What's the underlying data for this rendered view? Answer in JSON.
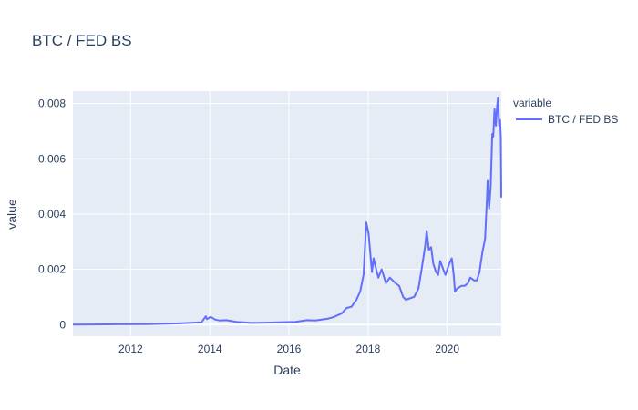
{
  "chart_data": {
    "type": "line",
    "title": "BTC / FED BS",
    "xlabel": "Date",
    "ylabel": "value",
    "x_type": "date",
    "xlim": [
      "2010-07-17",
      "2021-05-14"
    ],
    "ylim": [
      -0.00042,
      0.00845
    ],
    "x_ticks": [
      "2012-01-01",
      "2014-01-01",
      "2016-01-01",
      "2018-01-01",
      "2020-01-01"
    ],
    "x_tick_labels": [
      "2012",
      "2014",
      "2016",
      "2018",
      "2020"
    ],
    "y_ticks": [
      0,
      0.002,
      0.004,
      0.006,
      0.008
    ],
    "y_tick_labels": [
      "0",
      "0.002",
      "0.004",
      "0.006",
      "0.008"
    ],
    "grid": true,
    "legend": {
      "title": "variable",
      "placement": "top-right"
    },
    "series": [
      {
        "name": "BTC / FED BS",
        "color": "#636efa",
        "x": [
          "2010-07-17",
          "2011-06-01",
          "2012-06-01",
          "2013-03-01",
          "2013-10-15",
          "2013-11-25",
          "2013-12-05",
          "2014-01-10",
          "2014-02-20",
          "2014-04-01",
          "2014-06-01",
          "2014-09-01",
          "2015-01-15",
          "2015-06-01",
          "2015-10-01",
          "2016-03-01",
          "2016-06-15",
          "2016-09-01",
          "2017-01-01",
          "2017-02-20",
          "2017-05-01",
          "2017-06-15",
          "2017-08-01",
          "2017-09-15",
          "2017-10-20",
          "2017-11-20",
          "2017-12-15",
          "2018-01-05",
          "2018-02-05",
          "2018-02-20",
          "2018-03-10",
          "2018-04-05",
          "2018-05-05",
          "2018-06-15",
          "2018-07-20",
          "2018-08-15",
          "2018-09-10",
          "2018-10-15",
          "2018-11-20",
          "2018-12-15",
          "2019-01-20",
          "2019-03-01",
          "2019-04-10",
          "2019-05-10",
          "2019-06-10",
          "2019-06-26",
          "2019-07-15",
          "2019-08-05",
          "2019-08-25",
          "2019-09-20",
          "2019-10-10",
          "2019-10-28",
          "2019-11-25",
          "2019-12-15",
          "2020-01-20",
          "2020-02-12",
          "2020-03-01",
          "2020-03-13",
          "2020-04-01",
          "2020-05-10",
          "2020-06-10",
          "2020-07-10",
          "2020-08-01",
          "2020-09-05",
          "2020-10-01",
          "2020-10-25",
          "2020-11-20",
          "2020-12-15",
          "2021-01-01",
          "2021-01-08",
          "2021-01-22",
          "2021-02-05",
          "2021-02-20",
          "2021-03-01",
          "2021-03-13",
          "2021-03-25",
          "2021-04-05",
          "2021-04-14",
          "2021-04-25",
          "2021-05-03",
          "2021-05-10",
          "2021-05-14"
        ],
        "y": [
          0,
          1e-05,
          2e-05,
          4e-05,
          8e-05,
          0.0003,
          0.0002,
          0.00028,
          0.00018,
          0.00015,
          0.00016,
          0.0001,
          6e-05,
          7e-05,
          8e-05,
          0.0001,
          0.00016,
          0.00015,
          0.00022,
          0.00028,
          0.0004,
          0.0006,
          0.00065,
          0.0009,
          0.0012,
          0.0018,
          0.0037,
          0.0033,
          0.0019,
          0.0024,
          0.0021,
          0.0017,
          0.002,
          0.0015,
          0.0017,
          0.0016,
          0.0015,
          0.0014,
          0.001,
          0.0009,
          0.00095,
          0.001,
          0.0013,
          0.002,
          0.0028,
          0.0034,
          0.0027,
          0.0028,
          0.0022,
          0.0019,
          0.0018,
          0.0023,
          0.002,
          0.0018,
          0.0022,
          0.0024,
          0.0018,
          0.0012,
          0.0013,
          0.0014,
          0.0014,
          0.0015,
          0.0017,
          0.0016,
          0.0016,
          0.0019,
          0.0026,
          0.0031,
          0.0045,
          0.0052,
          0.0042,
          0.005,
          0.0069,
          0.0068,
          0.0078,
          0.0072,
          0.0079,
          0.0082,
          0.0072,
          0.0074,
          0.0068,
          0.0046
        ]
      }
    ]
  }
}
